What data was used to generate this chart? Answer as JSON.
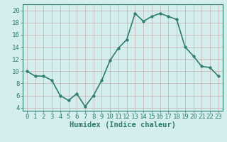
{
  "x": [
    0,
    1,
    2,
    3,
    4,
    5,
    6,
    7,
    8,
    9,
    10,
    11,
    12,
    13,
    14,
    15,
    16,
    17,
    18,
    19,
    20,
    21,
    22,
    23
  ],
  "y": [
    10,
    9.2,
    9.2,
    8.5,
    6.0,
    5.2,
    6.3,
    4.2,
    6.0,
    8.5,
    11.8,
    13.8,
    15.2,
    19.5,
    18.2,
    19.0,
    19.5,
    19.0,
    18.5,
    14.0,
    12.5,
    10.8,
    10.6,
    9.2
  ],
  "xlabel": "Humidex (Indice chaleur)",
  "xlim": [
    -0.5,
    23.5
  ],
  "ylim": [
    3.5,
    21.0
  ],
  "yticks": [
    4,
    6,
    8,
    10,
    12,
    14,
    16,
    18,
    20
  ],
  "xticks": [
    0,
    1,
    2,
    3,
    4,
    5,
    6,
    7,
    8,
    9,
    10,
    11,
    12,
    13,
    14,
    15,
    16,
    17,
    18,
    19,
    20,
    21,
    22,
    23
  ],
  "line_color": "#2e7d6e",
  "bg_color": "#d4eeee",
  "grid_color": "#c8a0a0",
  "tick_label_fontsize": 6.5,
  "xlabel_fontsize": 7.5,
  "line_width": 1.2,
  "marker_size": 2.5
}
